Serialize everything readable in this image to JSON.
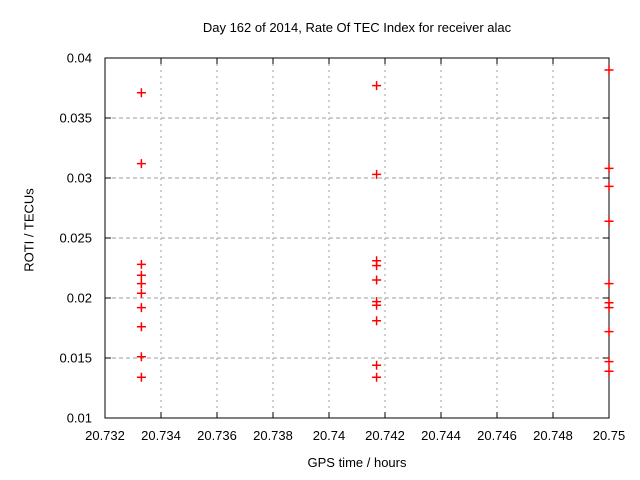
{
  "chart_data": {
    "type": "scatter",
    "title": "Day 162 of 2014, Rate Of TEC Index for receiver alac",
    "xlabel": "GPS time / hours",
    "ylabel": "ROTI / TECUs",
    "xlim": [
      20.732,
      20.75
    ],
    "ylim": [
      0.01,
      0.04
    ],
    "grid": true,
    "legend": "none",
    "xticks": {
      "values": [
        20.732,
        20.734,
        20.736,
        20.738,
        20.74,
        20.742,
        20.744,
        20.746,
        20.748,
        20.75
      ],
      "labels": [
        "20.732",
        "20.734",
        "20.736",
        "20.738",
        "20.74",
        "20.742",
        "20.744",
        "20.746",
        "20.748",
        "20.75"
      ]
    },
    "yticks": {
      "values": [
        0.01,
        0.015,
        0.02,
        0.025,
        0.03,
        0.035,
        0.04
      ],
      "labels": [
        "0.01",
        "0.015",
        "0.02",
        "0.025",
        "0.03",
        "0.035",
        "0.04"
      ]
    },
    "marker": {
      "shape": "plus",
      "size": 9,
      "color": "#ff0000"
    },
    "series": [
      {
        "name": "ROTI",
        "points": [
          [
            20.7333,
            0.0371
          ],
          [
            20.7333,
            0.0312
          ],
          [
            20.7333,
            0.0228
          ],
          [
            20.7333,
            0.0219
          ],
          [
            20.7333,
            0.0212
          ],
          [
            20.7333,
            0.0204
          ],
          [
            20.7333,
            0.0192
          ],
          [
            20.7333,
            0.0176
          ],
          [
            20.7333,
            0.0151
          ],
          [
            20.7333,
            0.0134
          ],
          [
            20.7417,
            0.0377
          ],
          [
            20.7417,
            0.0303
          ],
          [
            20.7417,
            0.0231
          ],
          [
            20.7417,
            0.0227
          ],
          [
            20.7417,
            0.0215
          ],
          [
            20.7417,
            0.0197
          ],
          [
            20.7417,
            0.0194
          ],
          [
            20.7417,
            0.0181
          ],
          [
            20.7417,
            0.0144
          ],
          [
            20.7417,
            0.0134
          ],
          [
            20.75,
            0.039
          ],
          [
            20.75,
            0.0308
          ],
          [
            20.75,
            0.0293
          ],
          [
            20.75,
            0.0264
          ],
          [
            20.75,
            0.0212
          ],
          [
            20.75,
            0.0196
          ],
          [
            20.75,
            0.0192
          ],
          [
            20.75,
            0.0172
          ],
          [
            20.75,
            0.0147
          ],
          [
            20.75,
            0.0139
          ]
        ]
      }
    ],
    "colors": {
      "marker": "#ff0000",
      "grid": "#9e9e9e",
      "border": "#000000",
      "text": "#000000",
      "background": "#ffffff"
    }
  }
}
